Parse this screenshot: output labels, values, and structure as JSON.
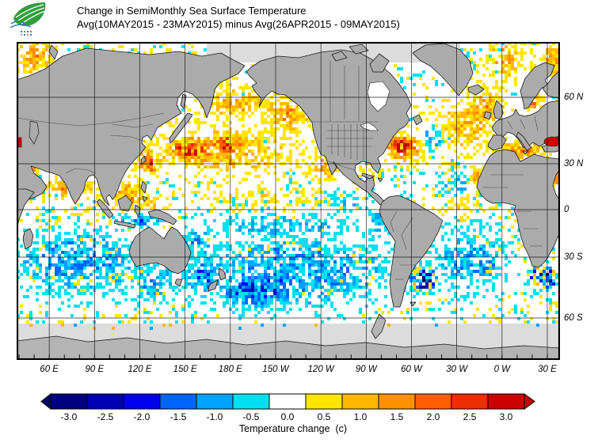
{
  "header": {
    "title_line1": "Change in SemiMonthly Sea Surface Temperature",
    "title_line2": "Avg(10MAY2015 - 23MAY2015) minus Avg(26APR2015 - 09MAY2015)"
  },
  "map": {
    "land_color": "#ababab",
    "nodata_color": "#dcdcdc",
    "coast_color": "#1a1a1a",
    "border_color": "#4d4d4d",
    "grid_color": "#000000",
    "lat_labels": [
      {
        "text": "60 N",
        "lat": 60
      },
      {
        "text": "30 N",
        "lat": 30
      },
      {
        "text": "0",
        "lat": 0
      },
      {
        "text": "30 S",
        "lat": -30
      },
      {
        "text": "60 S",
        "lat": -60
      }
    ],
    "lon_labels": [
      {
        "text": "60 E",
        "lon": 60
      },
      {
        "text": "90 E",
        "lon": 90
      },
      {
        "text": "120 E",
        "lon": 120
      },
      {
        "text": "150 E",
        "lon": 150
      },
      {
        "text": "180 E",
        "lon": 180
      },
      {
        "text": "150 W",
        "lon": 210
      },
      {
        "text": "120 W",
        "lon": 240
      },
      {
        "text": "90 W",
        "lon": 270
      },
      {
        "text": "60 W",
        "lon": 300
      },
      {
        "text": "30 W",
        "lon": 330
      },
      {
        "text": "0 W",
        "lon": 360
      },
      {
        "text": "30 E",
        "lon": 390
      }
    ],
    "anomaly_regions": [
      {
        "name": "barents-sea-warm",
        "lon": 50,
        "lat": 71,
        "rlon": 14,
        "rlat": 5,
        "value": 1.2,
        "noise": 0.8
      },
      {
        "name": "barents-right-warm",
        "lon": 394,
        "lat": 70,
        "rlon": 8,
        "rlat": 5,
        "value": 1.0,
        "noise": 0.7
      },
      {
        "name": "greenland-norwegian-sea-warm",
        "lon": 362,
        "lat": 70,
        "rlon": 14,
        "rlat": 6,
        "value": 0.8,
        "noise": 0.8
      },
      {
        "name": "north-pacific-yellow-band",
        "lon": 175,
        "lat": 35,
        "rlon": 50,
        "rlat": 13,
        "value": 0.9,
        "noise": 0.7
      },
      {
        "name": "kuroshio-red-core",
        "lon": 152,
        "lat": 36,
        "rlon": 13,
        "rlat": 5,
        "value": 2.3,
        "noise": 0.9
      },
      {
        "name": "north-pacific-second-core",
        "lon": 178,
        "lat": 39,
        "rlon": 14,
        "rlat": 5,
        "value": 1.6,
        "noise": 0.8
      },
      {
        "name": "east-china-sea-red",
        "lon": 126,
        "lat": 30,
        "rlon": 7,
        "rlat": 7,
        "value": 1.9,
        "noise": 1.2
      },
      {
        "name": "okhotsk-bering-warm",
        "lon": 182,
        "lat": 57,
        "rlon": 26,
        "rlat": 6,
        "value": 1.0,
        "noise": 0.8
      },
      {
        "name": "gulf-of-alaska-warm",
        "lon": 218,
        "lat": 52,
        "rlon": 16,
        "rlat": 8,
        "value": 1.3,
        "noise": 0.7
      },
      {
        "name": "california-coast-warm",
        "lon": 243,
        "lat": 28,
        "rlon": 13,
        "rlat": 9,
        "value": 0.9,
        "noise": 0.7
      },
      {
        "name": "tropical-pacific-speckle",
        "lon": 210,
        "lat": 8,
        "rlon": 55,
        "rlat": 10,
        "value": 0.25,
        "noise": 0.55
      },
      {
        "name": "eq-pacific-south-cool",
        "lon": 215,
        "lat": -10,
        "rlon": 45,
        "rlat": 8,
        "value": -0.6,
        "noise": 0.7
      },
      {
        "name": "east-pacific-cool",
        "lon": 258,
        "lat": 6,
        "rlon": 16,
        "rlat": 7,
        "value": -0.45,
        "noise": 0.6
      },
      {
        "name": "peru-coast-cool",
        "lon": 278,
        "lat": -8,
        "rlon": 10,
        "rlat": 8,
        "value": -0.5,
        "noise": 0.6
      },
      {
        "name": "south-pacific-cool",
        "lon": 225,
        "lat": -36,
        "rlon": 65,
        "rlat": 20,
        "value": -0.9,
        "noise": 0.85
      },
      {
        "name": "se-of-nz-blue",
        "lon": 195,
        "lat": -47,
        "rlon": 22,
        "rlat": 9,
        "value": -1.3,
        "noise": 0.9
      },
      {
        "name": "tasman-blue",
        "lon": 162,
        "lat": -40,
        "rlon": 12,
        "rlat": 9,
        "value": -1.1,
        "noise": 0.9
      },
      {
        "name": "coral-sea-cool",
        "lon": 158,
        "lat": -22,
        "rlon": 14,
        "rlat": 10,
        "value": -0.8,
        "noise": 0.8
      },
      {
        "name": "south-indian-cool",
        "lon": 78,
        "lat": -32,
        "rlon": 42,
        "rlat": 18,
        "value": -1.0,
        "noise": 0.9
      },
      {
        "name": "bight-south-cool",
        "lon": 128,
        "lat": -42,
        "rlon": 18,
        "rlat": 9,
        "value": -0.8,
        "noise": 0.8
      },
      {
        "name": "indian-midlat-yellow-speckle",
        "lon": 90,
        "lat": -41,
        "rlon": 38,
        "rlat": 5,
        "value": 0.4,
        "noise": 0.8
      },
      {
        "name": "eq-indian-white",
        "lon": 75,
        "lat": -4,
        "rlon": 28,
        "rlat": 9,
        "value": 0.1,
        "noise": 0.45
      },
      {
        "name": "arabian-sea-speckle",
        "lon": 63,
        "lat": 14,
        "rlon": 11,
        "rlat": 9,
        "value": 0.4,
        "noise": 0.55
      },
      {
        "name": "india-west-coast-warm",
        "lon": 70,
        "lat": 14,
        "rlon": 3,
        "rlat": 8,
        "value": 1.7,
        "noise": 0.6
      },
      {
        "name": "bay-of-bengal-speckle",
        "lon": 88,
        "lat": 14,
        "rlon": 7,
        "rlat": 6,
        "value": 0.5,
        "noise": 0.6
      },
      {
        "name": "south-china-sea-warm",
        "lon": 113,
        "lat": 10,
        "rlon": 12,
        "rlat": 8,
        "value": 1.3,
        "noise": 0.9
      },
      {
        "name": "celebes-warm",
        "lon": 128,
        "lat": 4,
        "rlon": 8,
        "rlat": 4,
        "value": 1.2,
        "noise": 0.9
      },
      {
        "name": "java-banda-cool",
        "lon": 120,
        "lat": -7,
        "rlon": 14,
        "rlat": 4,
        "value": -1.6,
        "noise": 1.0
      },
      {
        "name": "persian-gulf-warm",
        "lon": 50,
        "lat": 27,
        "rlon": 4,
        "rlat": 3,
        "value": 1.5,
        "noise": 0.5
      },
      {
        "name": "gulf-stream-red",
        "lon": 293,
        "lat": 38,
        "rlon": 9,
        "rlat": 4.5,
        "value": 2.6,
        "noise": 0.6
      },
      {
        "name": "gulf-stream-orange-ring",
        "lon": 296,
        "lat": 37,
        "rlon": 15,
        "rlat": 7,
        "value": 1.3,
        "noise": 0.8
      },
      {
        "name": "nw-atlantic-cool-eddy",
        "lon": 314,
        "lat": 41,
        "rlon": 7,
        "rlat": 6,
        "value": -1.1,
        "noise": 0.8
      },
      {
        "name": "ne-atlantic-warm",
        "lon": 334,
        "lat": 47,
        "rlon": 20,
        "rlat": 12,
        "value": 0.9,
        "noise": 0.7
      },
      {
        "name": "uk-biscay-warm",
        "lon": 350,
        "lat": 55,
        "rlon": 13,
        "rlat": 9,
        "value": 1.1,
        "noise": 0.7
      },
      {
        "name": "subtropical-atlantic-white",
        "lon": 325,
        "lat": 28,
        "rlon": 16,
        "rlat": 7,
        "value": 0.1,
        "noise": 0.45
      },
      {
        "name": "canary-cool",
        "lon": 331,
        "lat": 17,
        "rlon": 12,
        "rlat": 7,
        "value": -0.6,
        "noise": 0.7
      },
      {
        "name": "nw-africa-coast-warm",
        "lon": 343,
        "lat": 22,
        "rlon": 5,
        "rlat": 7,
        "value": 1.4,
        "noise": 0.6
      },
      {
        "name": "tropical-atlantic-speckle",
        "lon": 332,
        "lat": 2,
        "rlon": 18,
        "rlat": 9,
        "value": 0.35,
        "noise": 0.6
      },
      {
        "name": "gulf-mexico-caribbean-speckle",
        "lon": 272,
        "lat": 22,
        "rlon": 12,
        "rlat": 6,
        "value": 0.5,
        "noise": 0.7
      },
      {
        "name": "south-atlantic-cool",
        "lon": 340,
        "lat": -30,
        "rlon": 24,
        "rlat": 18,
        "value": -0.9,
        "noise": 0.85
      },
      {
        "name": "brazil-malvinas-mixed-eddies",
        "lon": 308,
        "lat": -41,
        "rlon": 10,
        "rlat": 7,
        "value": -1.6,
        "noise": 2.0
      },
      {
        "name": "agulhas-mixed-eddies",
        "lon": 388,
        "lat": -40,
        "rlon": 11,
        "rlat": 6,
        "value": -1.5,
        "noise": 2.0
      },
      {
        "name": "mediterranean-warm",
        "lon": 372,
        "lat": 36,
        "rlon": 20,
        "rlat": 4,
        "value": 1.6,
        "noise": 0.7
      },
      {
        "name": "baltic-warm",
        "lon": 380,
        "lat": 58,
        "rlon": 6,
        "rlat": 5,
        "value": 1.6,
        "noise": 0.7
      },
      {
        "name": "red-sea-warm",
        "lon": 395,
        "lat": 20,
        "rlon": 4,
        "rlat": 9,
        "value": 1.6,
        "noise": 0.6
      },
      {
        "name": "black-sea-strong-warm",
        "lon": 394,
        "lat": 43,
        "rlon": 7,
        "rlat": 3,
        "value": 3.0,
        "noise": 0.3
      }
    ]
  },
  "colorbar": {
    "ticks": [
      "-3.0",
      "-2.5",
      "-2.0",
      "-1.5",
      "-1.0",
      "-0.5",
      "0.0",
      "0.5",
      "1.0",
      "1.5",
      "2.0",
      "2.5",
      "3.0"
    ],
    "colors": [
      "#000080",
      "#0000b4",
      "#0000f0",
      "#0064ff",
      "#00a2ff",
      "#00e0f0",
      "#ffffff",
      "#ffe600",
      "#ffb800",
      "#ff9100",
      "#ff5e00",
      "#ee2e00",
      "#cb0000"
    ],
    "arrow_left_color": "#000072",
    "arrow_right_color": "#cb0000",
    "caption": "Temperature change  (c)"
  }
}
